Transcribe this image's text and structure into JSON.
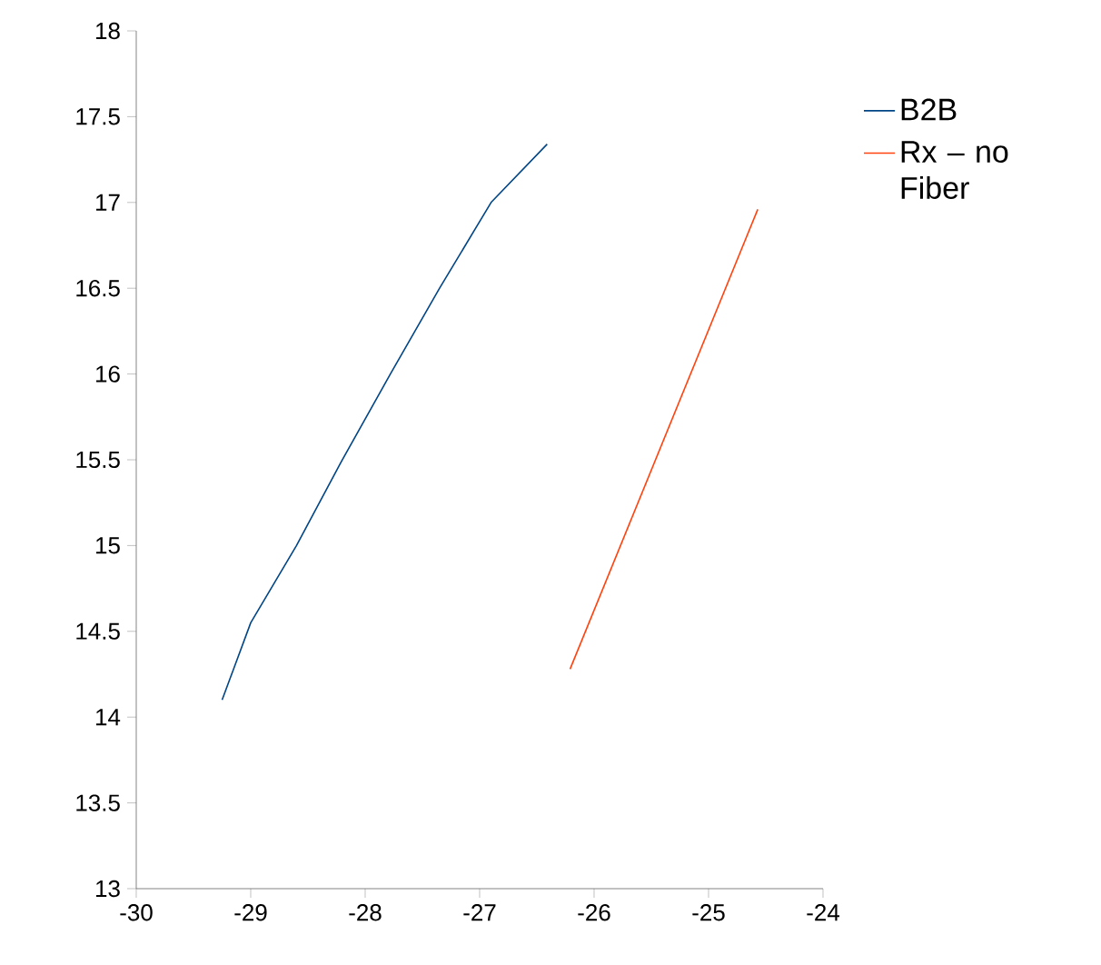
{
  "chart_data": {
    "type": "line",
    "xlim": [
      -30,
      -24
    ],
    "ylim": [
      13,
      18
    ],
    "xticks": [
      -30,
      -29,
      -28,
      -27,
      -26,
      -25,
      -24
    ],
    "yticks": [
      13,
      13.5,
      14,
      14.5,
      15,
      15.5,
      16,
      16.5,
      17,
      17.5,
      18
    ],
    "grid": false,
    "legend": "right",
    "marker": "none",
    "line_style": "solid",
    "series": [
      {
        "name": "B2B",
        "color": "#004586",
        "x": [
          -29.25,
          -29.0,
          -28.6,
          -28.2,
          -27.78,
          -27.35,
          -26.9,
          -26.41
        ],
        "values": [
          14.1,
          14.55,
          15.0,
          15.5,
          16.0,
          16.5,
          17.0,
          17.34
        ]
      },
      {
        "name": "Rx – no Fiber",
        "color": "#ff420e",
        "x": [
          -26.21,
          -24.57
        ],
        "values": [
          14.28,
          16.96
        ]
      }
    ]
  }
}
